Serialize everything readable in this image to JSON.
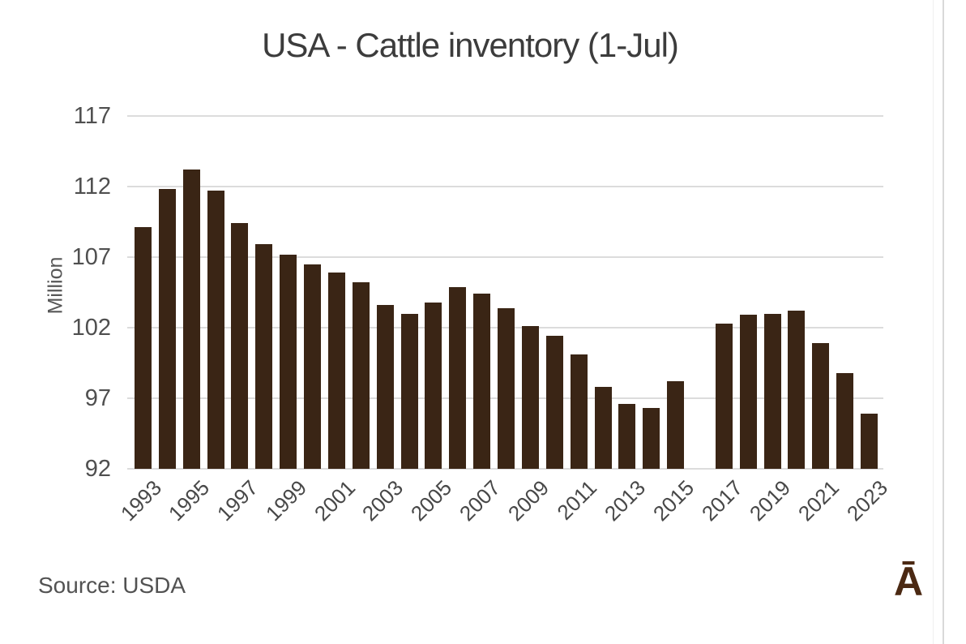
{
  "header": {
    "title": "USA - Cattle inventory (1-Jul)"
  },
  "footer": {
    "source_note": "Source: USDA",
    "logo_glyph": "Ā"
  },
  "chart_data": {
    "type": "bar",
    "title": "USA - Cattle inventory (1-Jul)",
    "xlabel": "",
    "ylabel": "Million",
    "unit": "million head",
    "ylim": [
      92,
      117
    ],
    "yticks": [
      117,
      112,
      107,
      102,
      97,
      92
    ],
    "xtick_labels": [
      "1993",
      "1995",
      "1997",
      "1999",
      "2001",
      "2003",
      "2005",
      "2007",
      "2009",
      "2011",
      "2013",
      "2015",
      "2017",
      "2019",
      "2021",
      "2023"
    ],
    "grid": "horizontal",
    "legend_position": "none",
    "bar_color": "#3a2515",
    "missing_years": [
      2016
    ],
    "source": "USDA",
    "categories": [
      1993,
      1994,
      1995,
      1996,
      1997,
      1998,
      1999,
      2000,
      2001,
      2002,
      2003,
      2004,
      2005,
      2006,
      2007,
      2008,
      2009,
      2010,
      2011,
      2012,
      2013,
      2014,
      2015,
      2016,
      2017,
      2018,
      2019,
      2020,
      2021,
      2022,
      2023
    ],
    "values": [
      109.1,
      111.8,
      113.2,
      111.7,
      109.4,
      107.9,
      107.2,
      106.5,
      105.9,
      105.2,
      103.6,
      103.0,
      103.8,
      104.9,
      104.4,
      103.4,
      102.1,
      101.4,
      100.1,
      97.8,
      96.6,
      96.3,
      98.2,
      null,
      102.3,
      102.9,
      103.0,
      103.2,
      100.9,
      98.8,
      95.9
    ]
  },
  "style": {
    "title_color": "#3c3c3c",
    "axis_text_color": "#4f4f4f",
    "grid_color": "#dcdcdc",
    "bar_color": "#3a2515",
    "logo_color": "#4b2913",
    "background": "#ffffff"
  }
}
